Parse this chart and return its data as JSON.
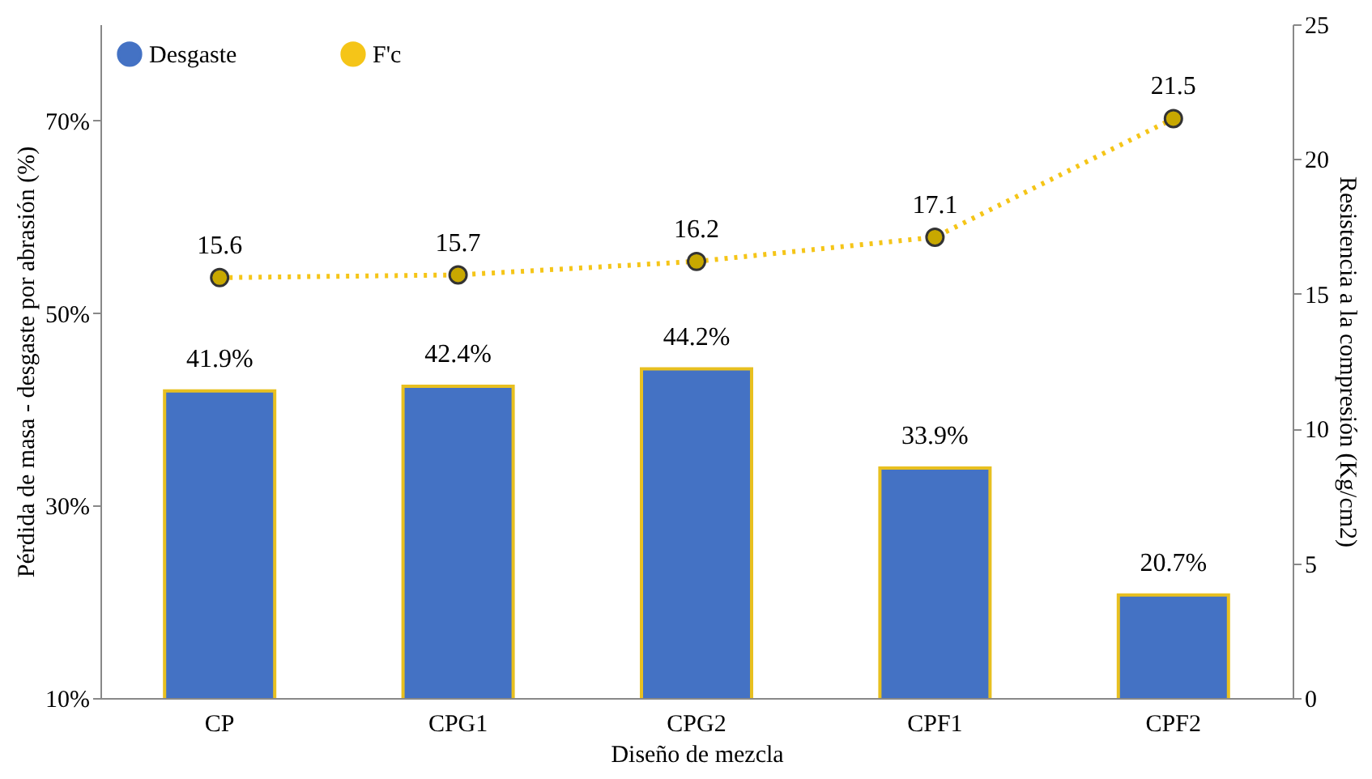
{
  "chart_data": {
    "type": "bar",
    "xlabel": "Diseño de mezcla",
    "ylabel": "Pérdida de masa - desgaste por abrasión (%)",
    "y2label": "Resistencia a la compresión (Kg/cm2)",
    "categories": [
      "CP",
      "CPG1",
      "CPG2",
      "CPF1",
      "CPF2"
    ],
    "series": [
      {
        "name": "Desgaste",
        "color": "#4472c4",
        "values": [
          41.9,
          42.4,
          44.2,
          33.9,
          20.7
        ],
        "value_labels": [
          "41.9%",
          "42.4%",
          "44.2%",
          "33.9%",
          "20.7%"
        ]
      },
      {
        "name": "F'c",
        "type": "line",
        "axis": "y2",
        "color": "#f5c518",
        "values": [
          15.6,
          15.7,
          16.2,
          17.1,
          21.5
        ],
        "value_labels": [
          "15.6",
          "15.7",
          "16.2",
          "17.1",
          "21.5"
        ]
      }
    ],
    "ylim": [
      10,
      80
    ],
    "yticks": [
      {
        "value": 10,
        "label": "10%"
      },
      {
        "value": 30,
        "label": "30%"
      },
      {
        "value": 50,
        "label": "50%"
      },
      {
        "value": 70,
        "label": "70%"
      }
    ],
    "y2lim": [
      0,
      25
    ],
    "y2ticks": [
      0,
      5,
      10,
      15,
      20,
      25
    ],
    "legend": "top left",
    "marker": "circle",
    "line_style": "dotted",
    "grid": false
  }
}
